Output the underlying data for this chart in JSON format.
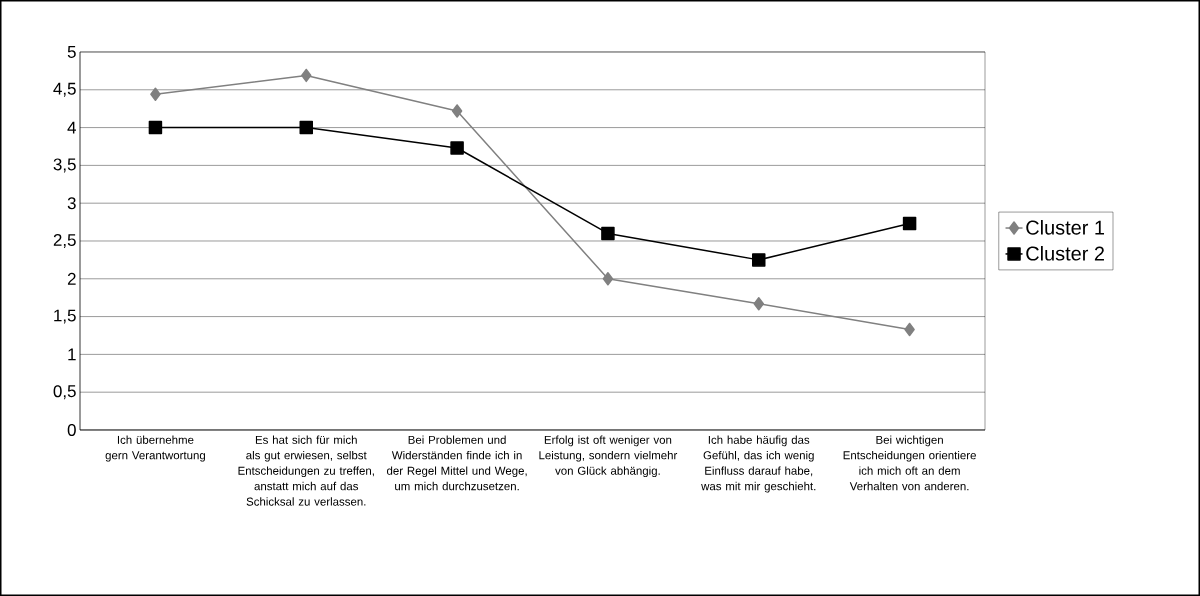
{
  "chart_data": {
    "type": "line",
    "categories": [
      "Ich übernehme gern Verantwortung",
      "Es hat sich für mich als gut erwiesen, selbst Entscheidungen zu treffen, anstatt mich auf das Schicksal zu verlassen.",
      "Bei Problemen und Widerständen finde ich in der Regel Mittel und Wege, um mich durchzusetzen.",
      "Erfolg ist oft weniger von Leistung, sondern vielmehr von Glück abhängig.",
      "Ich habe häufig das Gefühl, das ich wenig Einfluss darauf habe, was mit mir geschieht.",
      "Bei wichtigen Entscheidungen orientiere ich mich oft an dem Verhalten von anderen."
    ],
    "series": [
      {
        "name": "Cluster 1",
        "color": "#808080",
        "marker": "diamond",
        "values": [
          4.44,
          4.69,
          4.22,
          2.0,
          1.67,
          1.33
        ]
      },
      {
        "name": "Cluster 2",
        "color": "#000000",
        "marker": "square",
        "values": [
          4.0,
          4.0,
          3.73,
          2.6,
          2.25,
          2.73
        ]
      }
    ],
    "ylim": [
      0,
      5
    ],
    "yticks": [
      {
        "value": 0,
        "label": "0"
      },
      {
        "value": 0.5,
        "label": "0,5"
      },
      {
        "value": 1,
        "label": "1"
      },
      {
        "value": 1.5,
        "label": "1,5"
      },
      {
        "value": 2,
        "label": "2"
      },
      {
        "value": 2.5,
        "label": "2,5"
      },
      {
        "value": 3,
        "label": "3"
      },
      {
        "value": 3.5,
        "label": "3,5"
      },
      {
        "value": 4,
        "label": "4"
      },
      {
        "value": 4.5,
        "label": "4,5"
      },
      {
        "value": 5,
        "label": "5"
      }
    ],
    "grid": "y",
    "legend": "right"
  }
}
